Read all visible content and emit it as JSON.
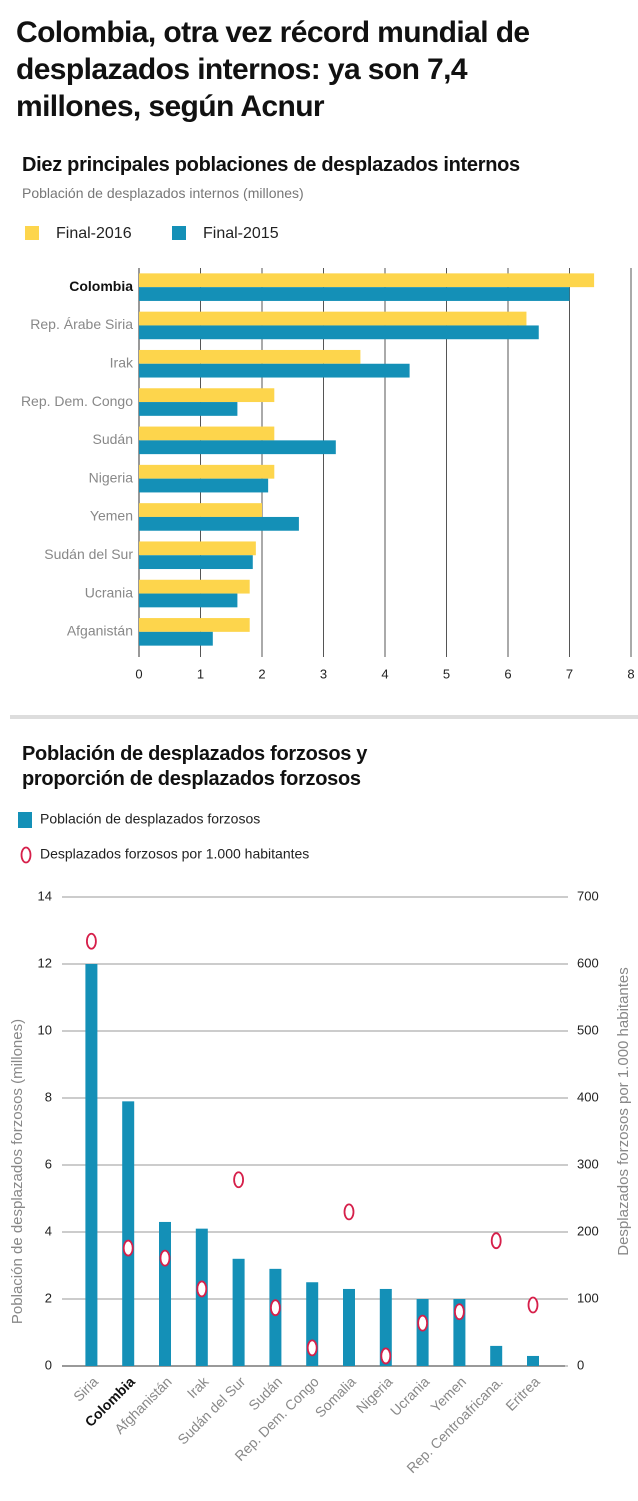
{
  "title": "Colombia, otra vez récord mundial de desplazados internos: ya son 7,4 millones, según Acnur",
  "chart_data": [
    {
      "type": "hbar",
      "title": "Diez principales poblaciones de desplazados internos",
      "subtitle": "Población de desplazados internos (millones)",
      "categories": [
        "Colombia",
        "Rep. Árabe Siria",
        "Irak",
        "Rep. Dem. Congo",
        "Sudán",
        "Nigeria",
        "Yemen",
        "Sudán del Sur",
        "Ucrania",
        "Afganistán"
      ],
      "highlight": "Colombia",
      "series": [
        {
          "name": "Final-2016",
          "color": "#fdd54c",
          "values": [
            7.4,
            6.3,
            3.6,
            2.2,
            2.2,
            2.2,
            2.0,
            1.9,
            1.8,
            1.8
          ]
        },
        {
          "name": "Final-2015",
          "color": "#1490b7",
          "values": [
            7.0,
            6.5,
            4.4,
            1.6,
            3.2,
            2.1,
            2.6,
            1.85,
            1.6,
            1.2
          ]
        }
      ],
      "xlim": [
        0,
        8
      ],
      "xticks": [
        0,
        1,
        2,
        3,
        4,
        5,
        6,
        7,
        8
      ],
      "grid": true
    },
    {
      "type": "bar_scatter",
      "title": "Población de desplazados forzosos y proporción de desplazados forzosos",
      "ylabel": "Población de desplazados forzosos (millones)",
      "y2label": "Desplazados forzosos por 1.000 habitantes",
      "categories": [
        "Siria",
        "Colombia",
        "Afghanistán",
        "Irak",
        "Sudán del Sur",
        "Sudán",
        "Rep. Dem. Congo",
        "Somalia",
        "Nigeria",
        "Ucrania",
        "Yemen",
        "Rep. Centroafricana.",
        "Eritrea"
      ],
      "highlight": "Colombia",
      "series": [
        {
          "name": "Población de desplazados forzosos",
          "type": "bar",
          "color": "#1490b7",
          "values": [
            12.0,
            7.9,
            4.3,
            4.1,
            3.2,
            2.9,
            2.5,
            2.3,
            2.3,
            2.0,
            2.0,
            0.6,
            0.3
          ]
        },
        {
          "name": "Desplazados forzosos por 1.000 habitantes",
          "type": "scatter",
          "axis": "y2",
          "color": "#d61f4a",
          "values": [
            634,
            176,
            161,
            115,
            278,
            87,
            27,
            230,
            15,
            64,
            81,
            187,
            91
          ]
        }
      ],
      "ylim": [
        0,
        14
      ],
      "yticks": [
        0,
        2,
        4,
        6,
        8,
        10,
        12,
        14
      ],
      "y2lim": [
        0,
        700
      ],
      "y2ticks": [
        0,
        100,
        200,
        300,
        400,
        500,
        600,
        700
      ],
      "grid": true
    }
  ]
}
